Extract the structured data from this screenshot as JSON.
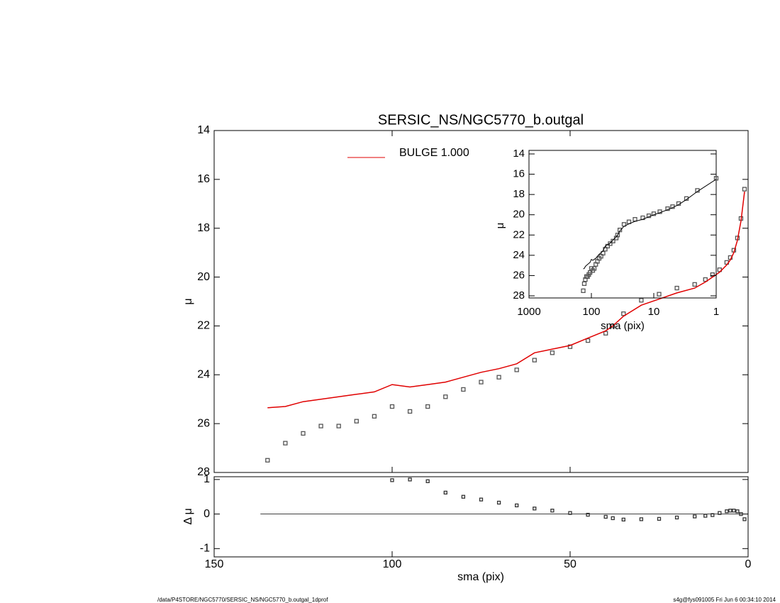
{
  "chart_data": [
    {
      "type": "profile",
      "title": "SERSIC_NS/NGC5770_b.outgal",
      "ylabel": "μ",
      "x": [
        1,
        2,
        3,
        4,
        5,
        6,
        8,
        10,
        12,
        15,
        20,
        25,
        30,
        35,
        38,
        40,
        45,
        50,
        55,
        60,
        65,
        70,
        75,
        80,
        85,
        90,
        95,
        100,
        105,
        110,
        115,
        120,
        125,
        130,
        135
      ],
      "series": [
        {
          "marker": "square",
          "color": "#555555",
          "values": [
            16.4,
            17.6,
            18.4,
            18.9,
            19.2,
            19.4,
            19.7,
            19.9,
            20.1,
            20.3,
            20.45,
            20.7,
            20.95,
            21.5,
            22.0,
            22.3,
            22.6,
            22.85,
            23.1,
            23.4,
            23.8,
            24.1,
            24.3,
            24.6,
            24.9,
            25.3,
            25.5,
            25.3,
            25.7,
            25.9,
            26.1,
            26.1,
            26.4,
            26.8,
            27.5
          ]
        },
        {
          "name": "BULGE  1.000",
          "color": "#e00000",
          "values": [
            16.5,
            17.7,
            18.5,
            19.0,
            19.3,
            19.5,
            19.8,
            20.0,
            20.2,
            20.45,
            20.65,
            20.9,
            21.15,
            21.6,
            22.0,
            22.2,
            22.5,
            22.8,
            22.95,
            23.1,
            23.55,
            23.75,
            23.9,
            24.1,
            24.3,
            24.4,
            24.5,
            24.4,
            24.7,
            24.8,
            24.9,
            25.0,
            25.1,
            25.3,
            25.35
          ]
        }
      ],
      "xlim": [
        0,
        150
      ],
      "ylim": [
        14,
        28
      ],
      "y_reversed": true,
      "yticks": [
        14,
        16,
        18,
        20,
        22,
        24,
        26,
        28
      ]
    },
    {
      "type": "residual",
      "ylabel": "Δ μ",
      "xlabel": "sma (pix)",
      "x": [
        1,
        2,
        3,
        4,
        5,
        6,
        8,
        10,
        12,
        15,
        20,
        25,
        30,
        35,
        38,
        40,
        45,
        50,
        55,
        60,
        65,
        70,
        75,
        80,
        85,
        90,
        95,
        100
      ],
      "values": [
        -0.15,
        0.0,
        0.08,
        0.1,
        0.1,
        0.08,
        0.03,
        -0.03,
        -0.05,
        -0.07,
        -0.1,
        -0.14,
        -0.15,
        -0.16,
        -0.12,
        -0.08,
        -0.02,
        0.03,
        0.1,
        0.16,
        0.25,
        0.33,
        0.42,
        0.5,
        0.62,
        0.95,
        1.0,
        0.98
      ],
      "color": "#333333",
      "zero_line": true,
      "xlim": [
        0,
        150
      ],
      "xticks": [
        0,
        50,
        100,
        150
      ],
      "ylim": [
        -1.24,
        1.08
      ],
      "yticks": [
        -1,
        0,
        1
      ]
    },
    {
      "type": "inset",
      "xlabel": "sma (pix)",
      "ylabel": "μ",
      "log_x": true,
      "line_color": "#000000",
      "xlim": [
        1,
        1000
      ],
      "xticks": [
        1,
        10,
        100,
        1000
      ],
      "ylim": [
        14,
        28
      ],
      "y_reversed": true,
      "yticks": [
        14,
        16,
        18,
        20,
        22,
        24,
        26,
        28
      ]
    }
  ],
  "footer_left": "/data/P4STORE/NGC5770/SERSIC_NS/NGC5770_b.outgal_1dprof",
  "footer_right": "s4g@fys091005  Fri Jun  6 00:34:10 2014"
}
